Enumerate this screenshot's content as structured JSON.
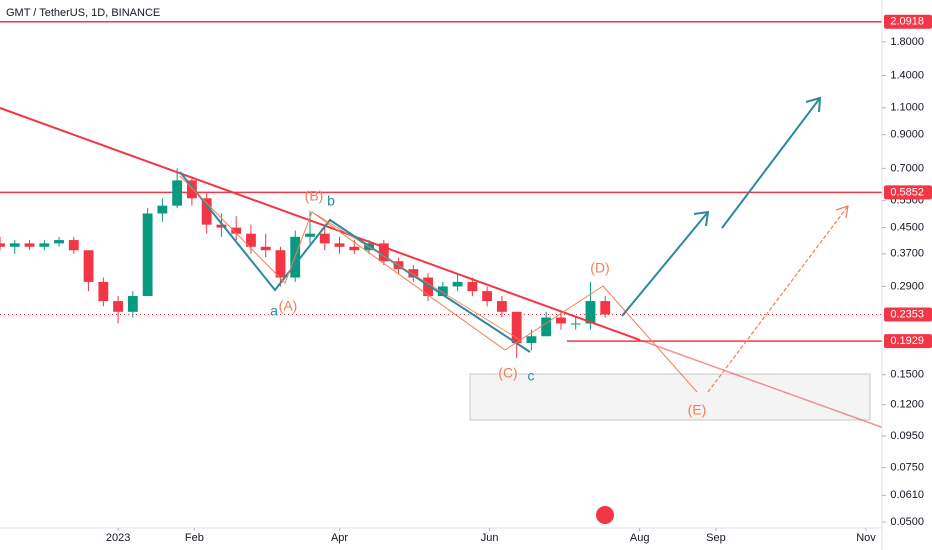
{
  "chart_data": {
    "type": "candlestick",
    "title": "GMT / TetherUS, 1D, BINANCE",
    "x": [
      -48,
      -42,
      -36,
      -30,
      -24,
      -18,
      -12,
      -6,
      0,
      6,
      12,
      18,
      24,
      30,
      36,
      42,
      48,
      54,
      60,
      66,
      72,
      78,
      84,
      90,
      96,
      102,
      108,
      114,
      120,
      126,
      132,
      138,
      144,
      150,
      156,
      162,
      168,
      174,
      180,
      186,
      192,
      198
    ],
    "open": [
      0.4,
      0.39,
      0.4,
      0.39,
      0.4,
      0.41,
      0.38,
      0.3,
      0.26,
      0.24,
      0.27,
      0.5,
      0.53,
      0.64,
      0.56,
      0.46,
      0.45,
      0.43,
      0.39,
      0.38,
      0.31,
      0.42,
      0.43,
      0.4,
      0.39,
      0.38,
      0.4,
      0.35,
      0.33,
      0.31,
      0.27,
      0.29,
      0.3,
      0.28,
      0.26,
      0.24,
      0.19,
      0.2,
      0.23,
      0.22,
      0.22,
      0.26
    ],
    "high": [
      0.42,
      0.41,
      0.41,
      0.41,
      0.42,
      0.42,
      0.38,
      0.31,
      0.27,
      0.28,
      0.52,
      0.56,
      0.7,
      0.66,
      0.58,
      0.5,
      0.49,
      0.46,
      0.43,
      0.39,
      0.44,
      0.51,
      0.45,
      0.42,
      0.41,
      0.41,
      0.41,
      0.36,
      0.34,
      0.32,
      0.3,
      0.32,
      0.31,
      0.29,
      0.27,
      0.24,
      0.21,
      0.24,
      0.24,
      0.23,
      0.3,
      0.27
    ],
    "low": [
      0.38,
      0.37,
      0.38,
      0.38,
      0.39,
      0.37,
      0.28,
      0.25,
      0.22,
      0.23,
      0.27,
      0.47,
      0.52,
      0.53,
      0.43,
      0.42,
      0.41,
      0.37,
      0.36,
      0.29,
      0.3,
      0.4,
      0.38,
      0.37,
      0.37,
      0.37,
      0.34,
      0.32,
      0.3,
      0.26,
      0.27,
      0.28,
      0.27,
      0.25,
      0.23,
      0.17,
      0.18,
      0.2,
      0.21,
      0.21,
      0.21,
      0.23
    ],
    "close": [
      0.39,
      0.4,
      0.39,
      0.4,
      0.41,
      0.38,
      0.3,
      0.26,
      0.24,
      0.27,
      0.5,
      0.53,
      0.64,
      0.56,
      0.46,
      0.45,
      0.43,
      0.39,
      0.38,
      0.31,
      0.42,
      0.43,
      0.4,
      0.39,
      0.38,
      0.4,
      0.35,
      0.33,
      0.31,
      0.27,
      0.29,
      0.3,
      0.28,
      0.26,
      0.24,
      0.19,
      0.2,
      0.23,
      0.22,
      0.22,
      0.26,
      0.2353
    ],
    "up_color": "#089981",
    "down_color": "#f23645",
    "log_scale": true,
    "xlim": [
      -48,
      310.5
    ],
    "xticks": [
      {
        "value": 0,
        "label": "2023"
      },
      {
        "value": 31,
        "label": "Feb"
      },
      {
        "value": 90,
        "label": "Apr"
      },
      {
        "value": 151,
        "label": "Jun"
      },
      {
        "value": 212,
        "label": "Aug"
      },
      {
        "value": 243,
        "label": "Sep"
      },
      {
        "value": 304,
        "label": "Nov"
      }
    ],
    "ylim": [
      0.0478,
      2.46
    ],
    "yticks": [
      {
        "value": 1.8,
        "label": "1.8000"
      },
      {
        "value": 1.4,
        "label": "1.4000"
      },
      {
        "value": 1.1,
        "label": "1.1000"
      },
      {
        "value": 0.9,
        "label": "0.9000"
      },
      {
        "value": 0.7,
        "label": "0.7000"
      },
      {
        "value": 0.55,
        "label": "0.5500"
      },
      {
        "value": 0.45,
        "label": "0.4500"
      },
      {
        "value": 0.37,
        "label": "0.3700"
      },
      {
        "value": 0.29,
        "label": "0.2900"
      },
      {
        "value": 0.15,
        "label": "0.1500"
      },
      {
        "value": 0.12,
        "label": "0.1200"
      },
      {
        "value": 0.095,
        "label": "0.0950"
      },
      {
        "value": 0.075,
        "label": "0.0750"
      },
      {
        "value": 0.061,
        "label": "0.0610"
      },
      {
        "value": 0.05,
        "label": "0.0500"
      }
    ],
    "levels": [
      2.0918,
      0.5852,
      0.1929
    ],
    "level_color": "#f23645",
    "last_price": 0.2353,
    "wave_labels": [
      "(B)",
      "b",
      "a",
      "(A)",
      "(C)",
      "c",
      "(D)",
      "(E)"
    ]
  }
}
